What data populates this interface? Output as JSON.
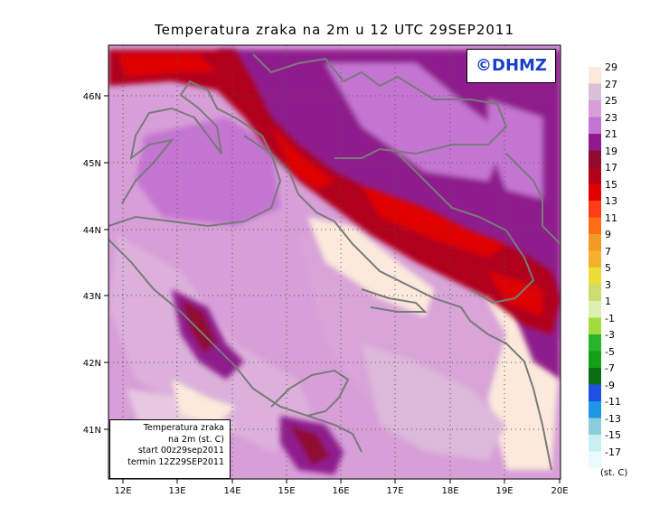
{
  "title": "Temperatura zraka na 2m u 12 UTC 29SEP2011",
  "logo_text": "©DHMZ",
  "info_box": {
    "line1": "Temperatura zraka",
    "line2": "na 2m (st. C)",
    "line3": "start 00z29sep2011",
    "line4": "termin 12Z29SEP2011"
  },
  "axes": {
    "lon_ticks": [
      "12E",
      "13E",
      "14E",
      "15E",
      "16E",
      "17E",
      "18E",
      "19E",
      "20E"
    ],
    "lat_ticks": [
      "46N",
      "45N",
      "44N",
      "43N",
      "42N",
      "41N"
    ]
  },
  "legend": {
    "unit": "(st. C)",
    "labels": [
      "29",
      "27",
      "25",
      "23",
      "21",
      "19",
      "17",
      "15",
      "13",
      "11",
      "9",
      "7",
      "5",
      "3",
      "1",
      "-1",
      "-3",
      "-5",
      "-7",
      "-9",
      "-11",
      "-13",
      "-15",
      "-17"
    ],
    "colors": [
      "#fbe9dc",
      "#d9bfd8",
      "#d79ed8",
      "#c474d2",
      "#8f1a8d",
      "#900a30",
      "#b0001a",
      "#e00000",
      "#ff3c14",
      "#ff6e14",
      "#f39a24",
      "#f4b22c",
      "#eedc38",
      "#ccdc6e",
      "#dcf0b0",
      "#a0dc3c",
      "#28b428",
      "#14a014",
      "#0c6e14",
      "#1e50e6",
      "#1e96e6",
      "#8ccddc",
      "#c8f0f0",
      "#ebfaff"
    ]
  },
  "colors": {
    "sea": "#d79ed8",
    "coast": "#7a7a7a"
  }
}
